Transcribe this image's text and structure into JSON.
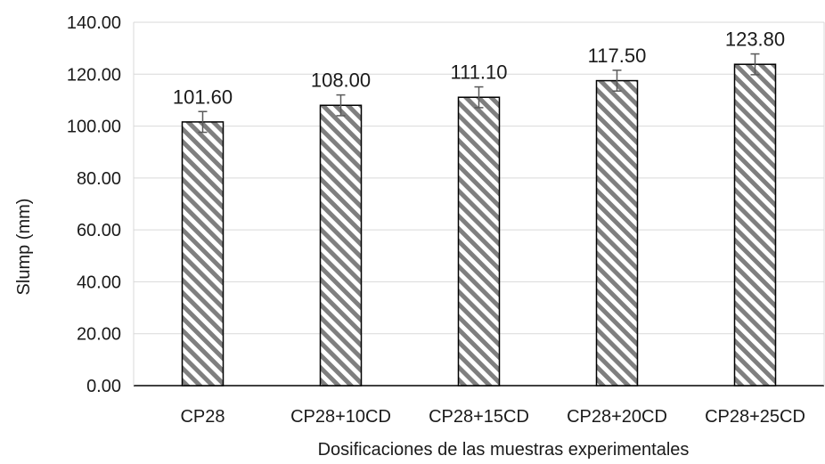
{
  "chart_data": {
    "type": "bar",
    "title": "",
    "xlabel": "Dosificaciones de las muestras experimentales",
    "ylabel": "Slump (mm)",
    "categories": [
      "CP28",
      "CP28+10CD",
      "CP28+15CD",
      "CP28+20CD",
      "CP28+25CD"
    ],
    "values": [
      101.6,
      108.0,
      111.1,
      117.5,
      123.8
    ],
    "value_labels": [
      "101.60",
      "108.00",
      "111.10",
      "117.50",
      "123.80"
    ],
    "error": [
      4,
      4,
      4,
      4,
      4
    ],
    "ylim": [
      0,
      140
    ],
    "y_ticks": [
      0,
      20,
      40,
      60,
      80,
      100,
      120,
      140
    ],
    "y_tick_labels": [
      "0.00",
      "20.00",
      "40.00",
      "60.00",
      "80.00",
      "100.00",
      "120.00",
      "140.00"
    ],
    "grid": "horizontal",
    "legend": "none",
    "bar_fill": "diagonal hatch",
    "colors": {
      "hatch": "#7f7f7f",
      "bar_edge": "#000000",
      "grid": "#d9d9d9",
      "error_bar": "#595959"
    }
  }
}
